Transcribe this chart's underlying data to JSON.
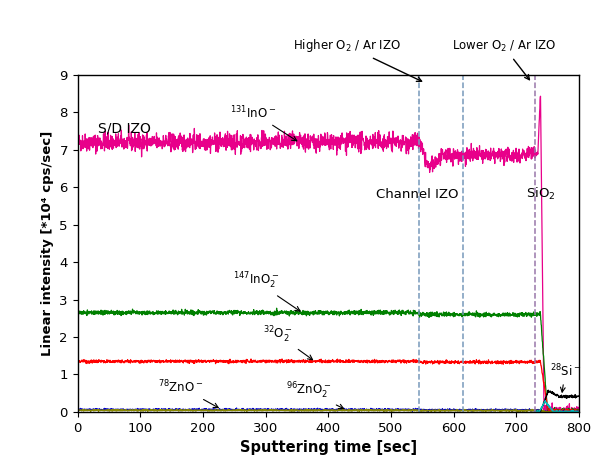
{
  "title": "",
  "xlabel": "Sputtering time [sec]",
  "ylabel": "Linear intensity [*10⁴ cps/sec]",
  "xlim": [
    0,
    800
  ],
  "ylim": [
    0,
    9
  ],
  "yticks": [
    0,
    1,
    2,
    3,
    4,
    5,
    6,
    7,
    8,
    9
  ],
  "xticks": [
    0,
    100,
    200,
    300,
    400,
    500,
    600,
    700,
    800
  ],
  "vline1": 545,
  "vline2": 615,
  "vline3": 730,
  "colors": {
    "InO131": "#E8008A",
    "InO2_147": "#008000",
    "O2_32": "#FF0000",
    "ZnO_78": "#0000CC",
    "ZnO2_96": "#888800",
    "Si28": "#000000",
    "cyan_line": "#00BBBB"
  },
  "vline_color1": "#7799BB",
  "vline_color2": "#7799BB",
  "vline_color3": "#9977AA"
}
